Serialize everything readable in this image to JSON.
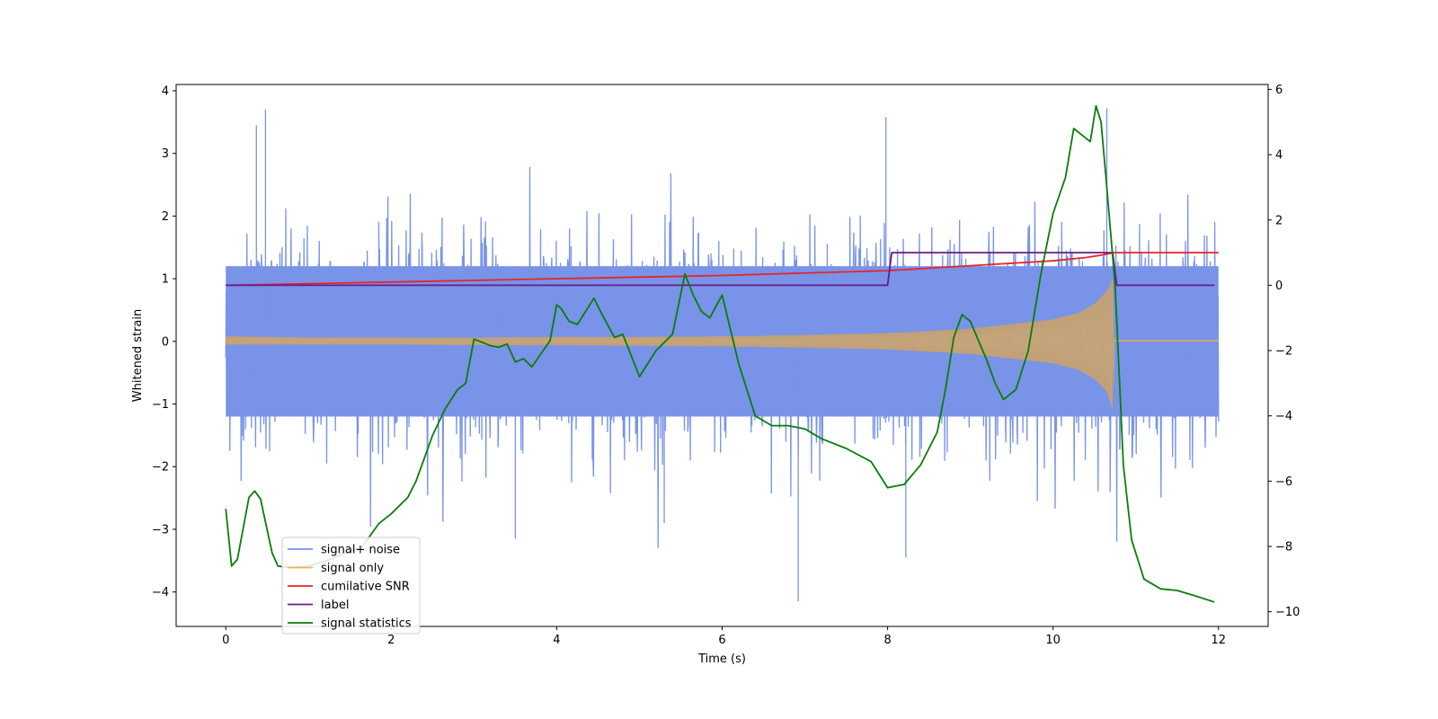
{
  "chart_data": {
    "type": "line",
    "title": "",
    "xlabel": "Time (s)",
    "ylabel": "Whitened strain",
    "y2label": "",
    "xlim": [
      -0.6,
      12.6
    ],
    "ylim": [
      -4.55,
      4.1
    ],
    "y2lim": [
      -10.45,
      6.15
    ],
    "x_ticks": [
      0,
      2,
      4,
      6,
      8,
      10,
      12
    ],
    "y_ticks": [
      -4,
      -3,
      -2,
      -1,
      0,
      1,
      2,
      3,
      4
    ],
    "y2_ticks": [
      -10,
      -8,
      -6,
      -4,
      -2,
      0,
      2,
      4,
      6
    ],
    "legend_position": "lower-left",
    "series": [
      {
        "name": "signal+ noise",
        "color": "#7893e8",
        "kind": "noise-band",
        "x_range": [
          0,
          12
        ],
        "band_low": -1.2,
        "band_high": 1.2,
        "spike_max": 3.7,
        "spike_min": -4.15
      },
      {
        "name": "signal only",
        "color": "#f2b15a",
        "kind": "chirp-envelope",
        "x": [
          0,
          1,
          2,
          3,
          4,
          5,
          6,
          7,
          8,
          9,
          10,
          10.3,
          10.5,
          10.65,
          10.72,
          10.74,
          12
        ],
        "upper": [
          0.08,
          0.06,
          0.06,
          0.06,
          0.07,
          0.07,
          0.08,
          0.1,
          0.13,
          0.2,
          0.35,
          0.45,
          0.6,
          0.8,
          1.0,
          0.02,
          0.02
        ],
        "lower": [
          -0.05,
          -0.05,
          -0.05,
          -0.06,
          -0.06,
          -0.07,
          -0.08,
          -0.1,
          -0.13,
          -0.2,
          -0.35,
          -0.45,
          -0.6,
          -0.8,
          -1.1,
          0.0,
          0.0
        ]
      },
      {
        "name": "cumilative SNR",
        "color": "#e8232a",
        "axis": "right",
        "x": [
          0,
          2,
          4,
          6,
          8,
          9,
          10,
          10.4,
          10.6,
          10.73,
          11,
          12
        ],
        "values": [
          0,
          0.1,
          0.2,
          0.3,
          0.45,
          0.6,
          0.75,
          0.85,
          0.93,
          1.0,
          1.0,
          1.0
        ]
      },
      {
        "name": "label",
        "color": "#6a1b8a",
        "axis": "right",
        "x": [
          0,
          8.0,
          8.05,
          10.72,
          10.77,
          11.95
        ],
        "values": [
          0,
          0,
          1,
          1,
          0,
          0
        ]
      },
      {
        "name": "signal statistics",
        "color": "#0a7d0a",
        "axis": "right",
        "x": [
          0,
          0.07,
          0.14,
          0.28,
          0.35,
          0.42,
          0.56,
          0.63,
          0.77,
          1.0,
          1.2,
          1.5,
          1.65,
          1.85,
          2.0,
          2.2,
          2.3,
          2.4,
          2.5,
          2.65,
          2.8,
          2.9,
          3.0,
          3.2,
          3.3,
          3.4,
          3.5,
          3.6,
          3.7,
          3.85,
          3.92,
          4.0,
          4.05,
          4.15,
          4.25,
          4.35,
          4.45,
          4.55,
          4.7,
          4.8,
          5.0,
          5.2,
          5.4,
          5.55,
          5.65,
          5.75,
          5.85,
          6.0,
          6.2,
          6.4,
          6.6,
          6.8,
          7.0,
          7.2,
          7.5,
          7.8,
          8.0,
          8.2,
          8.4,
          8.6,
          8.7,
          8.8,
          8.9,
          9.0,
          9.1,
          9.2,
          9.3,
          9.4,
          9.55,
          9.7,
          9.85,
          10.0,
          10.15,
          10.25,
          10.35,
          10.45,
          10.52,
          10.58,
          10.65,
          10.75,
          10.85,
          10.95,
          11.1,
          11.3,
          11.5,
          11.7,
          11.95
        ],
        "values": [
          -6.85,
          -8.6,
          -8.4,
          -6.5,
          -6.3,
          -6.55,
          -8.2,
          -8.6,
          -8.65,
          -8.6,
          -8.45,
          -8.15,
          -8.0,
          -7.3,
          -7.0,
          -6.5,
          -6.0,
          -5.3,
          -4.6,
          -3.8,
          -3.2,
          -3.0,
          -1.65,
          -1.85,
          -1.9,
          -1.8,
          -2.35,
          -2.25,
          -2.5,
          -1.95,
          -1.7,
          -0.6,
          -0.7,
          -1.1,
          -1.2,
          -0.8,
          -0.4,
          -0.9,
          -1.6,
          -1.5,
          -2.8,
          -2.0,
          -1.5,
          0.35,
          -0.3,
          -0.8,
          -1.0,
          -0.3,
          -2.4,
          -4.0,
          -4.3,
          -4.3,
          -4.4,
          -4.7,
          -5.0,
          -5.4,
          -6.2,
          -6.1,
          -5.5,
          -4.5,
          -3.2,
          -1.6,
          -0.9,
          -1.1,
          -1.7,
          -2.3,
          -3.0,
          -3.5,
          -3.2,
          -2.0,
          0.3,
          2.2,
          3.3,
          4.8,
          4.6,
          4.4,
          5.5,
          5.0,
          3.0,
          0.0,
          -5.5,
          -7.8,
          -9.0,
          -9.3,
          -9.35,
          -9.5,
          -9.7
        ]
      }
    ]
  }
}
